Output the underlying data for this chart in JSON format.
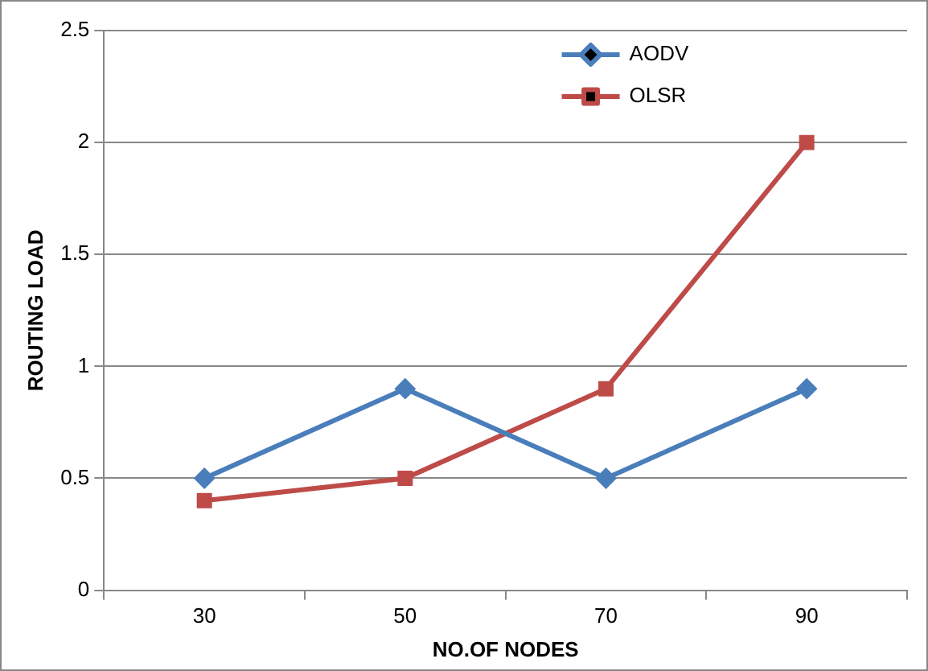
{
  "chart_data": {
    "type": "line",
    "xlabel": "NO.OF NODES",
    "ylabel": "ROUTING LOAD",
    "categories": [
      "30",
      "50",
      "70",
      "90"
    ],
    "series": [
      {
        "name": "AODV",
        "color": "#4a7ebb",
        "values": [
          0.5,
          0.9,
          0.5,
          0.9
        ],
        "marker": "diamond"
      },
      {
        "name": "OLSR",
        "color": "#be4b48",
        "values": [
          0.4,
          0.5,
          0.9,
          2
        ],
        "marker": "square"
      }
    ],
    "ylim": [
      0,
      2.5
    ],
    "yticks": [
      0,
      0.5,
      1,
      1.5,
      2,
      2.5
    ],
    "grid": "y",
    "legend": "top right",
    "line_style": "solid"
  }
}
